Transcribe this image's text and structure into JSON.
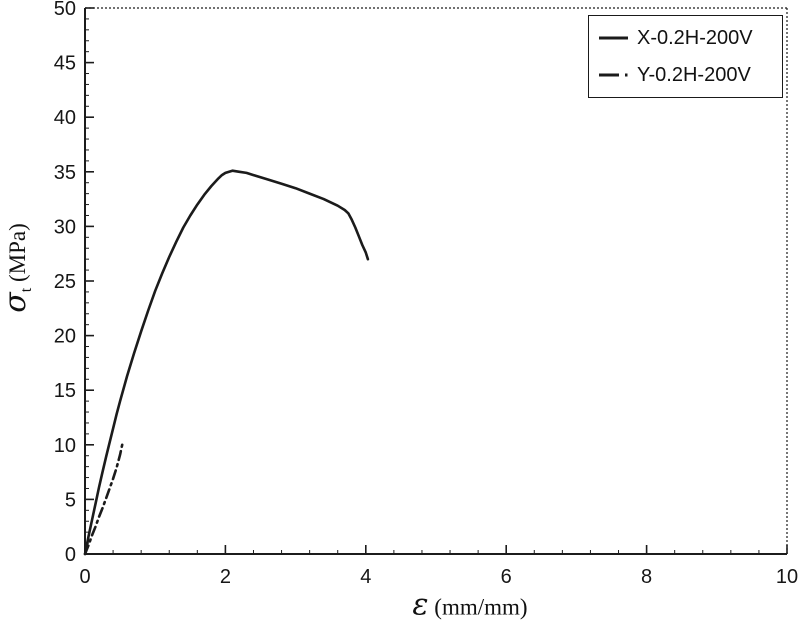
{
  "figure": {
    "background": "#ffffff",
    "frame_color": "#1c1c1c",
    "tick_label_color": "#161616"
  },
  "chart_data": {
    "type": "line",
    "title": "",
    "xlabel_symbol": "ε",
    "xlabel_unit": "(mm/mm)",
    "ylabel_symbol": "σ",
    "ylabel_subscript": "t",
    "ylabel_unit": "(MPa)",
    "xlim": [
      0,
      10
    ],
    "ylim": [
      0,
      50
    ],
    "x_ticks": [
      0,
      2,
      4,
      6,
      8,
      10
    ],
    "y_ticks": [
      0,
      5,
      10,
      15,
      20,
      25,
      30,
      35,
      40,
      45,
      50
    ],
    "x_minor_step": 0.4,
    "y_minor_step": 1,
    "grid": false,
    "legend_position": "top-right",
    "series": [
      {
        "name": "X-0.2H-200V",
        "style": "solid",
        "color": "#1b1b1b",
        "points": [
          [
            0,
            0
          ],
          [
            0.05,
            1.6
          ],
          [
            0.1,
            3.1
          ],
          [
            0.15,
            4.6
          ],
          [
            0.2,
            6.1
          ],
          [
            0.25,
            7.5
          ],
          [
            0.3,
            8.9
          ],
          [
            0.35,
            10.2
          ],
          [
            0.4,
            11.5
          ],
          [
            0.45,
            12.8
          ],
          [
            0.5,
            14.0
          ],
          [
            0.6,
            16.3
          ],
          [
            0.7,
            18.4
          ],
          [
            0.8,
            20.4
          ],
          [
            0.9,
            22.3
          ],
          [
            1.0,
            24.1
          ],
          [
            1.1,
            25.7
          ],
          [
            1.2,
            27.2
          ],
          [
            1.3,
            28.6
          ],
          [
            1.4,
            29.9
          ],
          [
            1.5,
            31.0
          ],
          [
            1.6,
            32.0
          ],
          [
            1.7,
            32.9
          ],
          [
            1.8,
            33.7
          ],
          [
            1.9,
            34.4
          ],
          [
            1.95,
            34.7
          ],
          [
            2.0,
            34.9
          ],
          [
            2.1,
            35.1
          ],
          [
            2.2,
            35.0
          ],
          [
            2.3,
            34.9
          ],
          [
            2.4,
            34.7
          ],
          [
            2.6,
            34.3
          ],
          [
            2.8,
            33.9
          ],
          [
            3.0,
            33.5
          ],
          [
            3.2,
            33.0
          ],
          [
            3.4,
            32.5
          ],
          [
            3.6,
            31.9
          ],
          [
            3.7,
            31.5
          ],
          [
            3.75,
            31.2
          ],
          [
            3.8,
            30.6
          ],
          [
            3.85,
            29.9
          ],
          [
            3.9,
            29.1
          ],
          [
            3.95,
            28.3
          ],
          [
            4.0,
            27.6
          ],
          [
            4.03,
            27.0
          ]
        ]
      },
      {
        "name": "Y-0.2H-200V",
        "style": "dash-dot",
        "color": "#1b1b1b",
        "points": [
          [
            0,
            0
          ],
          [
            0.05,
            0.8
          ],
          [
            0.1,
            1.7
          ],
          [
            0.15,
            2.5
          ],
          [
            0.2,
            3.4
          ],
          [
            0.25,
            4.2
          ],
          [
            0.3,
            5.1
          ],
          [
            0.35,
            6.0
          ],
          [
            0.4,
            6.9
          ],
          [
            0.45,
            7.9
          ],
          [
            0.5,
            9.1
          ],
          [
            0.54,
            10.3
          ]
        ]
      }
    ]
  }
}
